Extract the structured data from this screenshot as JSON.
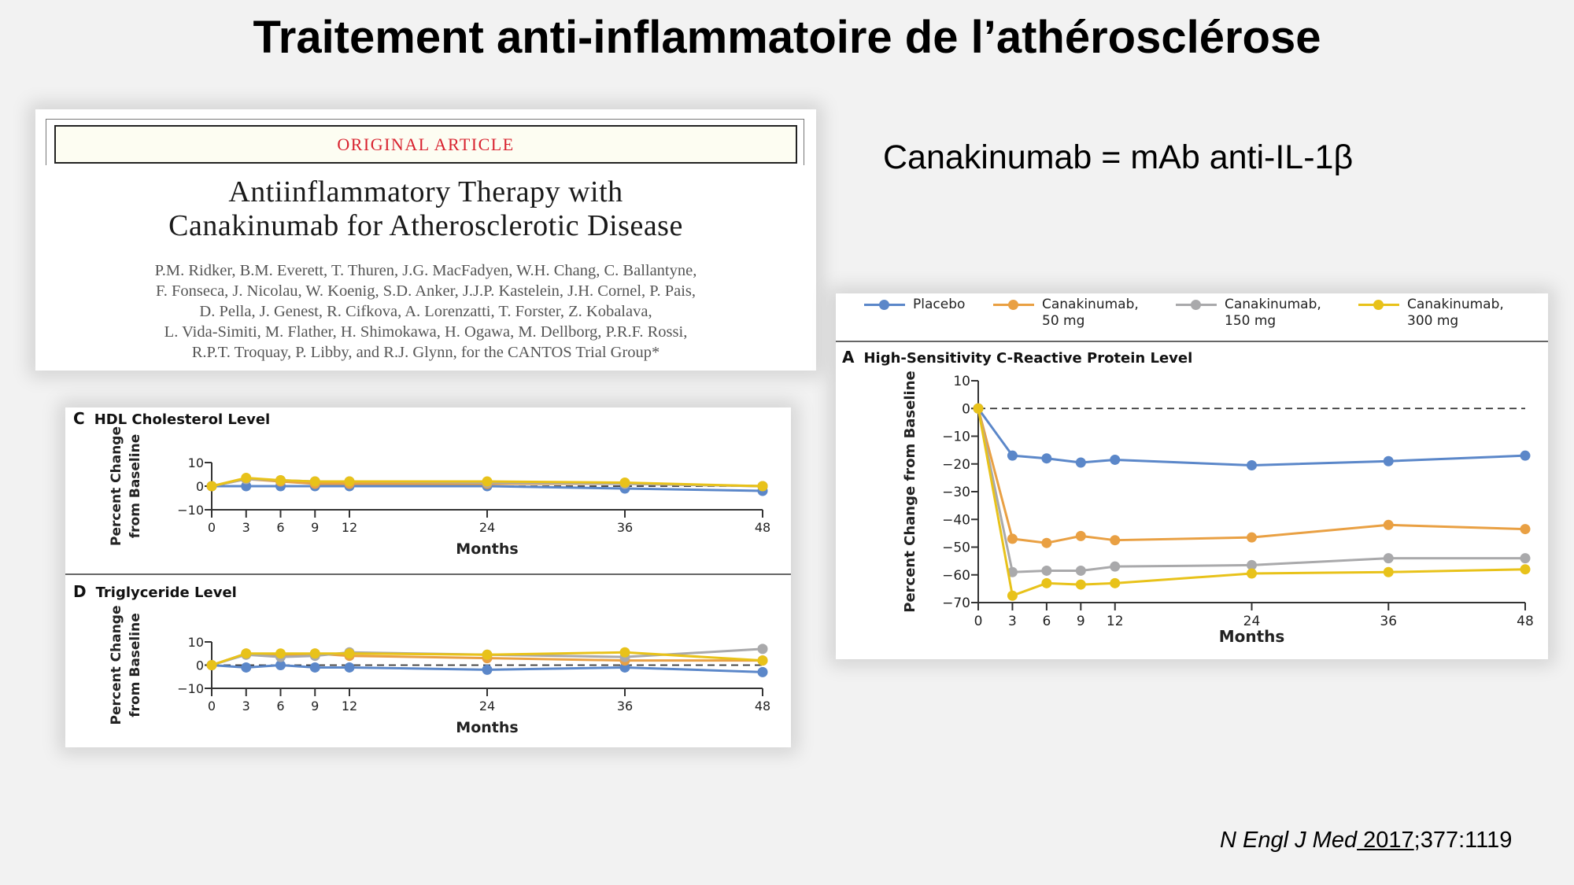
{
  "slide": {
    "title": "Traitement anti-inflammatoire de l’athérosclérose",
    "subtitle": "Canakinumab = mAb anti-IL-1β",
    "citation": {
      "journal": "N Engl J Med",
      "year": " 2017",
      "volume_pages": ";377:1119"
    }
  },
  "article": {
    "section_label": "ORIGINAL ARTICLE",
    "title_line1": "Antiinflammatory Therapy with",
    "title_line2": "Canakinumab for Atherosclerotic Disease",
    "authors": [
      "P.M. Ridker, B.M. Everett, T. Thuren, J.G. MacFadyen, W.H. Chang, C. Ballantyne,",
      "F. Fonseca, J. Nicolau, W. Koenig, S.D. Anker, J.J.P. Kastelein, J.H. Cornel, P. Pais,",
      "D. Pella, J. Genest, R. Cifkova, A. Lorenzatti, T. Forster, Z. Kobalava,",
      "L. Vida-Simiti, M. Flather, H. Shimokawa, H. Ogawa, M. Dellborg, P.R.F. Rossi,",
      "R.P.T. Troquay, P. Libby, and R.J. Glynn, for the CANTOS Trial Group*"
    ]
  },
  "legend": [
    {
      "label": "Placebo",
      "color": "#5b87c9"
    },
    {
      "label": "Canakinumab,\n50 mg",
      "color": "#e9a043"
    },
    {
      "label": "Canakinumab,\n150 mg",
      "color": "#a9a9ab"
    },
    {
      "label": "Canakinumab,\n300 mg",
      "color": "#e8c21a"
    }
  ],
  "chart_data": [
    {
      "type": "line",
      "panel": "A",
      "title": "High-Sensitivity C-Reactive Protein Level",
      "xlabel": "Months",
      "ylabel": "Percent Change from Baseline",
      "x": [
        0,
        3,
        6,
        9,
        12,
        24,
        36,
        48
      ],
      "xticks": [
        0,
        3,
        6,
        9,
        12,
        24,
        36,
        48
      ],
      "yticks": [
        10,
        0,
        -10,
        -20,
        -30,
        -40,
        -50,
        -60,
        -70
      ],
      "ylim": [
        -70,
        10
      ],
      "reference_line": 0,
      "series": [
        {
          "name": "Placebo",
          "color": "#5b87c9",
          "values": [
            0,
            -17,
            -18,
            -19.5,
            -18.5,
            -20.5,
            -19,
            -17
          ]
        },
        {
          "name": "Canakinumab, 50 mg",
          "color": "#e9a043",
          "values": [
            0,
            -47,
            -48.5,
            -46,
            -47.5,
            -46.5,
            -42,
            -43.5
          ]
        },
        {
          "name": "Canakinumab, 150 mg",
          "color": "#a9a9ab",
          "values": [
            0,
            -59,
            -58.5,
            -58.5,
            -57,
            -56.5,
            -54,
            -54
          ]
        },
        {
          "name": "Canakinumab, 300 mg",
          "color": "#e8c21a",
          "values": [
            0,
            -67.5,
            -63,
            -63.5,
            -63,
            -59.5,
            -59,
            -58
          ]
        }
      ]
    },
    {
      "type": "line",
      "panel": "C",
      "title": "HDL Cholesterol Level",
      "xlabel": "Months",
      "ylabel": "Percent Change from Baseline",
      "x": [
        0,
        3,
        6,
        9,
        12,
        24,
        36,
        48
      ],
      "xticks": [
        0,
        3,
        6,
        9,
        12,
        24,
        36,
        48
      ],
      "yticks": [
        10,
        0,
        -10
      ],
      "ylim": [
        -10,
        10
      ],
      "reference_line": 0,
      "series": [
        {
          "name": "Placebo",
          "color": "#5b87c9",
          "values": [
            0,
            0,
            0,
            0,
            0,
            0,
            -1,
            -2
          ]
        },
        {
          "name": "Canakinumab, 50 mg",
          "color": "#e9a043",
          "values": [
            0,
            3,
            2,
            1,
            1,
            1,
            1,
            0
          ]
        },
        {
          "name": "Canakinumab, 150 mg",
          "color": "#a9a9ab",
          "values": [
            0,
            3,
            2.5,
            2,
            2,
            1.5,
            1,
            0
          ]
        },
        {
          "name": "Canakinumab, 300 mg",
          "color": "#e8c21a",
          "values": [
            0,
            3.5,
            2.5,
            2,
            2,
            2,
            1.5,
            0
          ]
        }
      ]
    },
    {
      "type": "line",
      "panel": "D",
      "title": "Triglyceride Level",
      "xlabel": "Months",
      "ylabel": "Percent Change from Baseline",
      "x": [
        0,
        3,
        6,
        9,
        12,
        24,
        36,
        48
      ],
      "xticks": [
        0,
        3,
        6,
        9,
        12,
        24,
        36,
        48
      ],
      "yticks": [
        10,
        0,
        -10
      ],
      "ylim": [
        -10,
        10
      ],
      "reference_line": 0,
      "series": [
        {
          "name": "Placebo",
          "color": "#5b87c9",
          "values": [
            0,
            -1,
            0,
            -1,
            -1,
            -2,
            -1,
            -3
          ]
        },
        {
          "name": "Canakinumab, 50 mg",
          "color": "#e9a043",
          "values": [
            0,
            5,
            4,
            5,
            4,
            3,
            2,
            2
          ]
        },
        {
          "name": "Canakinumab, 150 mg",
          "color": "#a9a9ab",
          "values": [
            0,
            4.5,
            3.5,
            4,
            5.5,
            4.5,
            3.5,
            7
          ]
        },
        {
          "name": "Canakinumab, 300 mg",
          "color": "#e8c21a",
          "values": [
            0,
            5,
            5,
            5,
            5,
            4.5,
            5.5,
            2
          ]
        }
      ]
    }
  ]
}
